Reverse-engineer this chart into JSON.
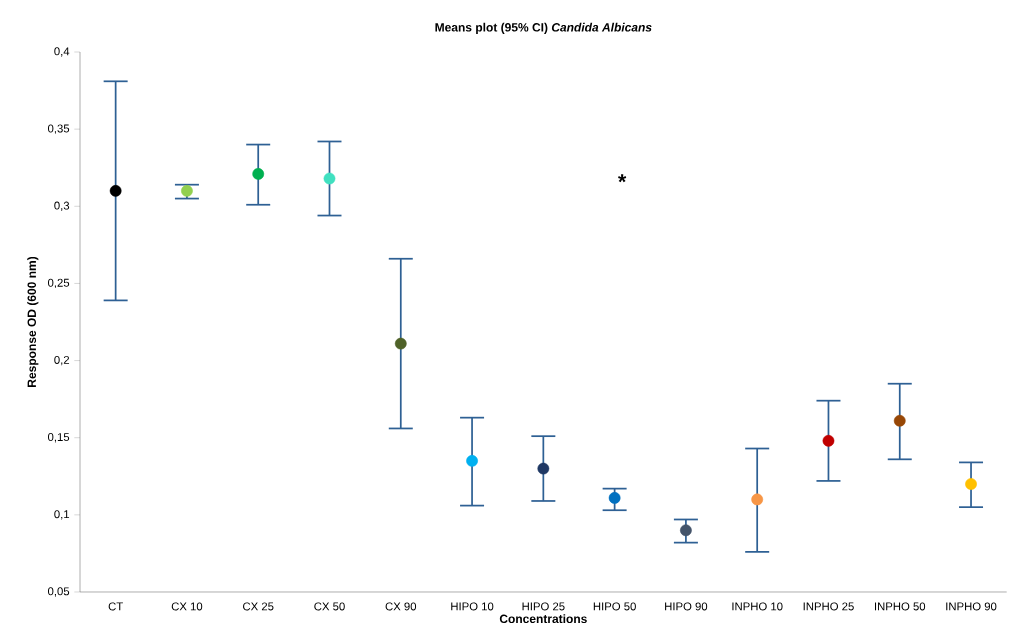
{
  "chart_data": {
    "type": "scatter",
    "title": "Means plot (95% CI) *Candida Albicans*",
    "xlabel": "Concentrations",
    "ylabel": "Response OD (600 nm)",
    "categories": [
      "CT",
      "CX 10",
      "CX 25",
      "CX 50",
      "CX 90",
      "HIPO 10",
      "HIPO 25",
      "HIPO 50",
      "HIPO 90",
      "INPHO 10",
      "INPHO 25",
      "INPHO 50",
      "INPHO 90"
    ],
    "values": [
      0.31,
      0.31,
      0.321,
      0.318,
      0.211,
      0.135,
      0.13,
      0.111,
      0.09,
      0.11,
      0.148,
      0.161,
      0.12
    ],
    "errors": [
      [
        0.239,
        0.381
      ],
      [
        0.305,
        0.314
      ],
      [
        0.301,
        0.34
      ],
      [
        0.294,
        0.342
      ],
      [
        0.156,
        0.266
      ],
      [
        0.106,
        0.163
      ],
      [
        0.109,
        0.151
      ],
      [
        0.103,
        0.117
      ],
      [
        0.082,
        0.097
      ],
      [
        0.076,
        0.143
      ],
      [
        0.122,
        0.174
      ],
      [
        0.136,
        0.185
      ],
      [
        0.105,
        0.134
      ]
    ],
    "colors": [
      "#000000",
      "#92d050",
      "#00b050",
      "#40e0c0",
      "#4f6228",
      "#00b0f0",
      "#1f3864",
      "#0070c0",
      "#44546a",
      "#f79646",
      "#c00000",
      "#974706",
      "#ffc000"
    ],
    "ylim": [
      0.05,
      0.4
    ],
    "yticks": [
      {
        "value": 0.05,
        "label": "0,05"
      },
      {
        "value": 0.1,
        "label": "0,1"
      },
      {
        "value": 0.15,
        "label": "0,15"
      },
      {
        "value": 0.2,
        "label": "0,2"
      },
      {
        "value": 0.25,
        "label": "0,25"
      },
      {
        "value": 0.3,
        "label": "0,3"
      },
      {
        "value": 0.35,
        "label": "0,35"
      },
      {
        "value": 0.4,
        "label": "0,4"
      }
    ],
    "annotations": [
      "*"
    ]
  }
}
